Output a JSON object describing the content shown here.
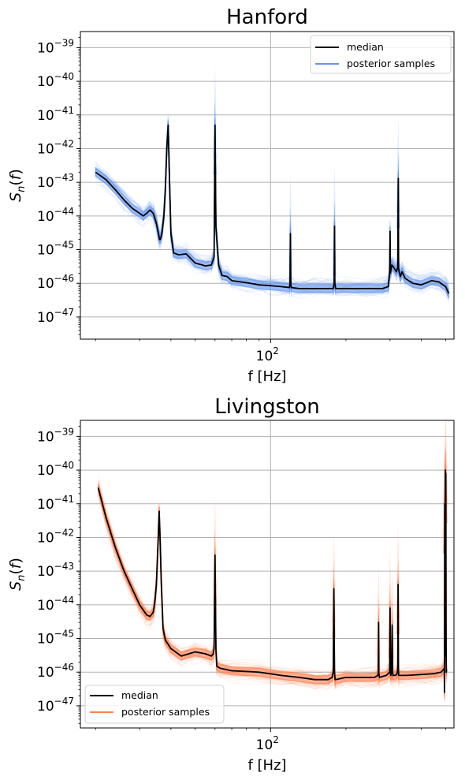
{
  "chart_data": [
    {
      "type": "line",
      "title": "Hanford",
      "xlabel": "f [Hz]",
      "ylabel": "S_n(f)",
      "xscale": "log",
      "yscale": "log",
      "xlim": [
        17.4,
        540
      ],
      "ylim": [
        2.2e-48,
        3e-39
      ],
      "xticks": [
        {
          "value": 100,
          "label": "10",
          "exp": "2"
        }
      ],
      "yticks": [
        {
          "value": 1e-39,
          "label": "10",
          "exp": "−39"
        },
        {
          "value": 1e-40,
          "label": "10",
          "exp": "−40"
        },
        {
          "value": 1e-41,
          "label": "10",
          "exp": "−41"
        },
        {
          "value": 1e-42,
          "label": "10",
          "exp": "−42"
        },
        {
          "value": 1e-43,
          "label": "10",
          "exp": "−43"
        },
        {
          "value": 1e-44,
          "label": "10",
          "exp": "−44"
        },
        {
          "value": 1e-45,
          "label": "10",
          "exp": "−45"
        },
        {
          "value": 1e-46,
          "label": "10",
          "exp": "−46"
        },
        {
          "value": 1e-47,
          "label": "10",
          "exp": "−47"
        }
      ],
      "grid": true,
      "legend_position": "top-right",
      "colors": {
        "median": "#000000",
        "samples": "#6495ED"
      },
      "series": [
        {
          "name": "median",
          "x": [
            20,
            22,
            24,
            26,
            28,
            30,
            31,
            32,
            33,
            34,
            35,
            35.5,
            35.8,
            36,
            36.3,
            36.8,
            37.5,
            38,
            38.5,
            39,
            39.5,
            40,
            41,
            43,
            46,
            50,
            55,
            58,
            59.5,
            60,
            60.5,
            62,
            64,
            67,
            70,
            80,
            90,
            100,
            110,
            119,
            119.6,
            120,
            120.4,
            121,
            130,
            150,
            170,
            178,
            179.5,
            180,
            180.5,
            182,
            200,
            240,
            280,
            295,
            299,
            300,
            301,
            305,
            310,
            318,
            322,
            323.5,
            324.5,
            326,
            330,
            335,
            345,
            370,
            400,
            440,
            470,
            500,
            515
          ],
          "y": [
            2e-43,
            1.2e-43,
            6e-44,
            3e-44,
            1.7e-44,
            1.2e-44,
            1e-44,
            1.2e-44,
            1.5e-44,
            1.2e-44,
            6e-45,
            3.5e-45,
            2.6e-45,
            2e-45,
            2e-45,
            3e-45,
            1e-44,
            6e-44,
            1e-42,
            5e-42,
            1e-43,
            3e-45,
            8e-46,
            7e-46,
            7.5e-46,
            4e-46,
            3.3e-46,
            3.5e-46,
            6e-46,
            5e-42,
            5e-45,
            3.5e-46,
            1.7e-46,
            1.6e-46,
            1.2e-46,
            1.05e-46,
            9e-47,
            8.5e-47,
            8e-47,
            7.5e-47,
            1e-46,
            3e-45,
            1e-46,
            7.5e-47,
            7e-47,
            7e-47,
            7e-47,
            7e-47,
            1e-46,
            5e-45,
            1e-46,
            7e-47,
            7e-47,
            7e-47,
            7e-47,
            8e-47,
            2e-46,
            3.5e-45,
            2e-46,
            3.5e-46,
            3e-46,
            2.2e-46,
            3e-46,
            1.3e-43,
            3e-46,
            2.2e-46,
            1.6e-46,
            2.2e-46,
            1.4e-46,
            1e-46,
            9e-47,
            1.2e-46,
            1.1e-46,
            8e-47,
            5e-47
          ]
        },
        {
          "name": "posterior samples",
          "x": [],
          "y": []
        }
      ]
    },
    {
      "type": "line",
      "title": "Livingston",
      "xlabel": "f [Hz]",
      "ylabel": "S_n(f)",
      "xscale": "log",
      "yscale": "log",
      "xlim": [
        17.4,
        540
      ],
      "ylim": [
        2.2e-48,
        3e-39
      ],
      "xticks": [
        {
          "value": 100,
          "label": "10",
          "exp": "2"
        }
      ],
      "yticks": [
        {
          "value": 1e-39,
          "label": "10",
          "exp": "−39"
        },
        {
          "value": 1e-40,
          "label": "10",
          "exp": "−40"
        },
        {
          "value": 1e-41,
          "label": "10",
          "exp": "−41"
        },
        {
          "value": 1e-42,
          "label": "10",
          "exp": "−42"
        },
        {
          "value": 1e-43,
          "label": "10",
          "exp": "−43"
        },
        {
          "value": 1e-44,
          "label": "10",
          "exp": "−44"
        },
        {
          "value": 1e-45,
          "label": "10",
          "exp": "−45"
        },
        {
          "value": 1e-46,
          "label": "10",
          "exp": "−46"
        },
        {
          "value": 1e-47,
          "label": "10",
          "exp": "−47"
        }
      ],
      "grid": true,
      "legend_position": "bottom-left",
      "colors": {
        "median": "#000000",
        "samples": "#FF7F50"
      },
      "series": [
        {
          "name": "median",
          "x": [
            20.5,
            22,
            24,
            26,
            28,
            30,
            32,
            33,
            34,
            34.5,
            35,
            35.3,
            35.6,
            35.9,
            36.2,
            36.6,
            37.2,
            38,
            40,
            44,
            50,
            55,
            58,
            59,
            59.5,
            60,
            60.5,
            61,
            63,
            70,
            90,
            110,
            130,
            150,
            170,
            176,
            178,
            179,
            180,
            181,
            182,
            200,
            230,
            260,
            268,
            269.5,
            270,
            270.5,
            272,
            290,
            299,
            300,
            301,
            302,
            304,
            306,
            307,
            308,
            315,
            320,
            322,
            323,
            324,
            325,
            327,
            350,
            400,
            450,
            480,
            490,
            494,
            495,
            496,
            497,
            498,
            499,
            500,
            501,
            502,
            503,
            505
          ],
          "y": [
            3e-41,
            4e-42,
            5e-43,
            1e-43,
            3e-44,
            1e-44,
            5e-45,
            4.5e-45,
            6e-45,
            1.2e-44,
            4e-44,
            2e-43,
            1e-42,
            6e-42,
            1e-42,
            5e-44,
            2e-45,
            9e-46,
            5e-46,
            3e-46,
            4e-46,
            3.5e-46,
            3e-46,
            3.5e-46,
            5e-46,
            3e-43,
            5e-46,
            1.5e-46,
            1.3e-46,
            1.1e-46,
            1e-46,
            8e-47,
            7e-47,
            6e-47,
            6e-47,
            7e-47,
            1e-46,
            3e-44,
            1e-46,
            6e-47,
            6e-47,
            7e-47,
            7e-47,
            7e-47,
            8e-47,
            1e-46,
            3e-45,
            1e-46,
            7e-47,
            8e-47,
            1e-46,
            8e-45,
            1e-46,
            8e-47,
            1e-46,
            2.5e-45,
            1e-46,
            8e-47,
            8e-47,
            9e-47,
            1.2e-46,
            4e-44,
            1.2e-46,
            8e-47,
            8e-47,
            8e-47,
            8.5e-47,
            9e-47,
            1e-46,
            1.2e-46,
            1.3e-46,
            2.5e-47,
            1e-41,
            3e-46,
            2e-44,
            1e-40,
            3e-45,
            8e-41,
            3e-45,
            1e-46,
            1.2e-46
          ]
        },
        {
          "name": "posterior samples",
          "x": [],
          "y": []
        }
      ]
    }
  ]
}
